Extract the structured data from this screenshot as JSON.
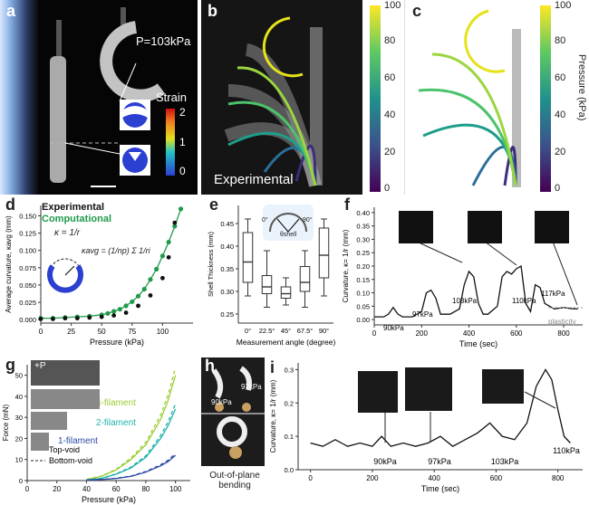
{
  "panels": {
    "a": {
      "label": "a",
      "pressure": "P=103kPa",
      "strain_title": "Strain",
      "strain_ticks": [
        "2",
        "1",
        "0"
      ]
    },
    "b": {
      "label": "b",
      "caption": "Experimental",
      "colorbar_ticks": [
        "100",
        "80",
        "60",
        "40",
        "20",
        "0"
      ]
    },
    "c": {
      "label": "c",
      "colorbar_title": "Pressure (kPa)",
      "colorbar_ticks": [
        "100",
        "80",
        "60",
        "40",
        "20",
        "0"
      ]
    },
    "d": {
      "label": "d",
      "legend_experimental": "Experimental",
      "legend_computational": "Computational",
      "eq1": "κ = 1/r",
      "eq2": "κavg = (1/np) Σ 1/ri"
    },
    "e": {
      "label": "e",
      "inset_left": "0°",
      "inset_right": "90°",
      "inset_theta": "θshell"
    },
    "f": {
      "label": "f",
      "annotations": [
        "90kPa",
        "97kPa",
        "103kPa",
        "110kPa",
        "117kPa"
      ],
      "plasticity": "plasticity"
    },
    "g": {
      "label": "g",
      "inset_p": "+P",
      "filaments": [
        "4-filament",
        "2-filament",
        "1-filament"
      ],
      "legend": [
        "Top-void",
        "Bottom-void"
      ]
    },
    "h": {
      "label": "h",
      "pressures": [
        "97kPa",
        "90kPa"
      ],
      "caption": "Out-of-plane bending"
    },
    "i": {
      "label": "i",
      "annotations": [
        "90kPa",
        "97kPa",
        "103kPa",
        "110kPa"
      ]
    }
  },
  "chart_data": [
    {
      "id": "d",
      "type": "scatter",
      "xlabel": "Pressure (kPa)",
      "ylabel": "Average curvature, κavg (mm)",
      "xticks": [
        0,
        25,
        50,
        75,
        100
      ],
      "yticks": [
        0,
        0.025,
        0.05,
        0.075,
        0.1,
        0.125,
        0.15
      ],
      "ytick_labels": [
        "0.000",
        "0.025",
        "0.050",
        "0.075",
        "0.100",
        "0.125",
        "0.150"
      ],
      "xlim": [
        0,
        125
      ],
      "ylim": [
        -0.005,
        0.165
      ],
      "series": [
        {
          "name": "Experimental",
          "color": "#111111",
          "x": [
            0,
            10,
            20,
            30,
            40,
            50,
            60,
            70,
            80,
            90,
            100,
            105,
            110
          ],
          "y": [
            0.001,
            0.001,
            0.002,
            0.002,
            0.003,
            0.004,
            0.006,
            0.01,
            0.02,
            0.035,
            0.06,
            0.09,
            0.14
          ]
        },
        {
          "name": "Computational",
          "color": "#1f9a4b",
          "x": [
            0,
            10,
            20,
            30,
            40,
            50,
            55,
            60,
            65,
            70,
            75,
            80,
            85,
            90,
            95,
            100,
            105,
            110,
            115
          ],
          "y": [
            0.002,
            0.002,
            0.003,
            0.004,
            0.005,
            0.007,
            0.009,
            0.012,
            0.015,
            0.02,
            0.026,
            0.034,
            0.044,
            0.058,
            0.073,
            0.092,
            0.112,
            0.135,
            0.16
          ]
        }
      ]
    },
    {
      "id": "e",
      "type": "box",
      "xlabel": "Measurement angle (degree)",
      "ylabel": "Shell Thickness (mm)",
      "categories": [
        "0°",
        "22.5°",
        "45°",
        "67.5°",
        "90°"
      ],
      "yticks": [
        0.25,
        0.3,
        0.35,
        0.4,
        0.45
      ],
      "ytick_labels": [
        "0.25",
        "0.30",
        "0.35",
        "0.40",
        "0.45"
      ],
      "ylim": [
        0.23,
        0.49
      ],
      "boxes": [
        {
          "min": 0.29,
          "q1": 0.32,
          "median": 0.365,
          "q3": 0.43,
          "max": 0.46
        },
        {
          "min": 0.265,
          "q1": 0.295,
          "median": 0.31,
          "q3": 0.335,
          "max": 0.39
        },
        {
          "min": 0.27,
          "q1": 0.285,
          "median": 0.295,
          "q3": 0.31,
          "max": 0.33
        },
        {
          "min": 0.265,
          "q1": 0.3,
          "median": 0.32,
          "q3": 0.355,
          "max": 0.39
        },
        {
          "min": 0.29,
          "q1": 0.33,
          "median": 0.38,
          "q3": 0.44,
          "max": 0.46
        }
      ]
    },
    {
      "id": "f",
      "type": "line",
      "xlabel": "Time (sec)",
      "ylabel": "Curvature, κ= 1/r (mm)",
      "xticks": [
        0,
        200,
        400,
        600,
        800
      ],
      "yticks": [
        0,
        0.05,
        0.1,
        0.15,
        0.2,
        0.25,
        0.3,
        0.35,
        0.4
      ],
      "ytick_labels": [
        "0.00",
        "0.05",
        "0.10",
        "0.15",
        "0.20",
        "0.25",
        "0.30",
        "0.35",
        "0.40"
      ],
      "xlim": [
        0,
        880
      ],
      "ylim": [
        -0.02,
        0.42
      ],
      "x": [
        0,
        40,
        60,
        80,
        100,
        120,
        160,
        200,
        220,
        240,
        260,
        280,
        320,
        360,
        380,
        400,
        420,
        440,
        460,
        480,
        520,
        540,
        560,
        580,
        600,
        620,
        640,
        660,
        680,
        700,
        720,
        760,
        800,
        840,
        860
      ],
      "y": [
        0.01,
        0.01,
        0.02,
        0.045,
        0.02,
        0.01,
        0.01,
        0.03,
        0.1,
        0.11,
        0.08,
        0.02,
        0.02,
        0.04,
        0.13,
        0.18,
        0.16,
        0.06,
        0.02,
        0.02,
        0.05,
        0.16,
        0.18,
        0.17,
        0.19,
        0.2,
        0.06,
        0.03,
        0.13,
        0.12,
        0.06,
        0.04,
        0.045,
        0.04,
        0.04
      ]
    },
    {
      "id": "g",
      "type": "line",
      "xlabel": "Pressure (kPa)",
      "ylabel": "Force (mN)",
      "xticks": [
        0,
        20,
        40,
        60,
        80,
        100
      ],
      "yticks": [
        0,
        10,
        20,
        30,
        40,
        50
      ],
      "xlim": [
        0,
        110
      ],
      "ylim": [
        0,
        55
      ],
      "series": [
        {
          "name": "4-filament",
          "color": "#9acd32",
          "x": [
            40,
            50,
            60,
            70,
            80,
            90,
            95,
            100
          ],
          "y": [
            0.5,
            2,
            5,
            10,
            17,
            29,
            38,
            50
          ]
        },
        {
          "name": "2-filament",
          "color": "#20b2aa",
          "x": [
            40,
            50,
            60,
            70,
            80,
            90,
            95,
            100
          ],
          "y": [
            0.3,
            1,
            3,
            6,
            11,
            20,
            26,
            34
          ]
        },
        {
          "name": "1-filament",
          "color": "#2c4aa6",
          "x": [
            40,
            50,
            60,
            70,
            80,
            90,
            95,
            100
          ],
          "y": [
            0.2,
            0.5,
            1,
            2,
            4,
            7,
            9,
            12
          ]
        }
      ]
    },
    {
      "id": "i",
      "type": "line",
      "xlabel": "Time (sec)",
      "ylabel": "Curvature, κ= 1/r (mm)",
      "xticks": [
        0,
        200,
        400,
        600,
        800
      ],
      "yticks": [
        0,
        0.1,
        0.2,
        0.3
      ],
      "ytick_labels": [
        "0.0",
        "0.1",
        "0.2",
        "0.3"
      ],
      "xlim": [
        -40,
        880
      ],
      "ylim": [
        0,
        0.32
      ],
      "x": [
        0,
        40,
        80,
        120,
        160,
        200,
        230,
        260,
        300,
        340,
        380,
        420,
        460,
        500,
        540,
        580,
        620,
        660,
        700,
        730,
        760,
        780,
        800,
        820,
        840
      ],
      "y": [
        0.08,
        0.07,
        0.09,
        0.07,
        0.08,
        0.07,
        0.1,
        0.07,
        0.08,
        0.07,
        0.08,
        0.1,
        0.07,
        0.09,
        0.11,
        0.14,
        0.1,
        0.09,
        0.14,
        0.25,
        0.3,
        0.27,
        0.18,
        0.1,
        0.08
      ]
    }
  ]
}
